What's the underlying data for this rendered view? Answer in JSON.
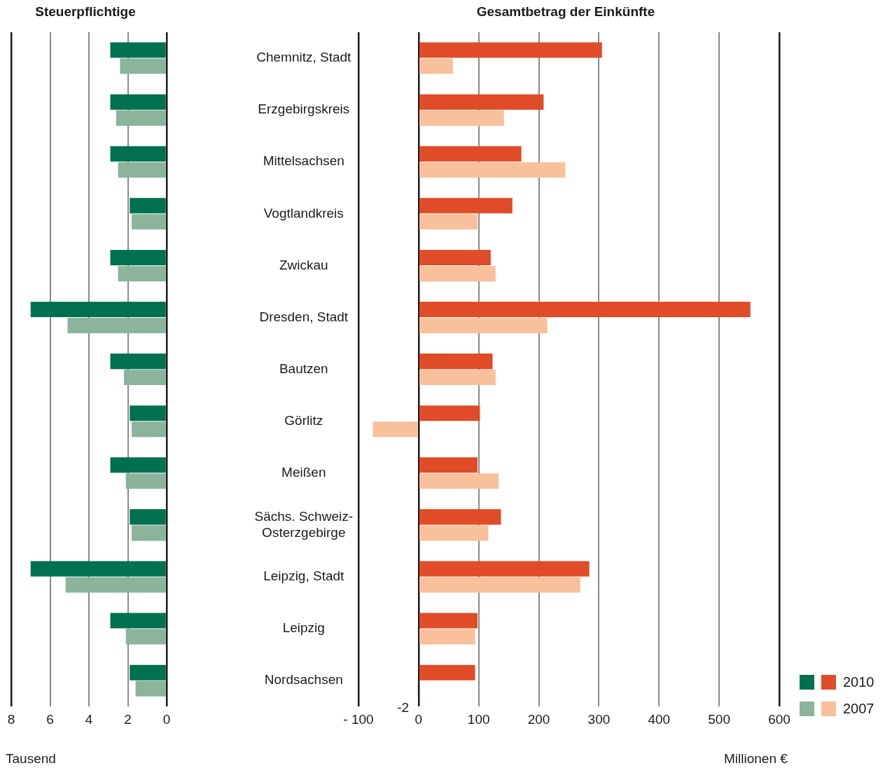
{
  "chart_data": [
    {
      "type": "bar",
      "orientation": "horizontal",
      "title": "Steuerpflichtige",
      "xlabel": "Tausend",
      "categories": [
        null,
        null,
        null,
        null,
        null,
        null,
        null,
        null,
        null,
        null,
        null,
        null,
        null
      ],
      "series": [
        {
          "color": "#00704f",
          "values": [
            2.9,
            2.9,
            2.9,
            1.9,
            2.9,
            7.0,
            2.9,
            1.9,
            2.9,
            1.9,
            7.0,
            2.9,
            1.9
          ]
        },
        {
          "color": "#8cb39b",
          "values": [
            2.4,
            2.6,
            2.5,
            1.8,
            2.5,
            5.1,
            2.2,
            1.8,
            2.1,
            1.8,
            5.2,
            2.1,
            1.6
          ]
        }
      ],
      "xlim": [
        8,
        0
      ],
      "xticks": [
        8,
        6,
        4,
        2,
        0
      ],
      "grid": "x",
      "tick_labels": "x"
    },
    {
      "type": "bar",
      "orientation": "horizontal",
      "title": "Gesamtbetrag der Einkünfte",
      "xlabel": "Millionen €",
      "categories": [
        "Chemnitz, Stadt",
        "Erzgebirgskreis",
        "Mittelsachsen",
        "Vogtlandkreis",
        "Zwickau",
        "Dresden, Stadt",
        "Bautzen",
        "Görlitz",
        "Meißen",
        "Sächs. Schweiz-\nOsterzgebirge",
        "Leipzig, Stadt",
        "Leipzig",
        "Nordsachsen"
      ],
      "series": [
        {
          "name": "2010",
          "color": "#e04b28",
          "values": [
            305,
            208,
            171,
            156,
            120,
            552,
            123,
            102,
            98,
            137,
            284,
            98,
            94
          ]
        },
        {
          "name": "2007",
          "color": "#f8c09b",
          "values": [
            57,
            142,
            244,
            98,
            128,
            214,
            128,
            -76,
            133,
            116,
            269,
            94,
            -2
          ],
          "value_labels": [
            null,
            null,
            null,
            null,
            null,
            null,
            null,
            null,
            null,
            null,
            null,
            null,
            "-2"
          ]
        }
      ],
      "xlim": [
        -100,
        600
      ],
      "xticks": [
        {
          "value": -100,
          "label": "- 100"
        },
        0,
        100,
        200,
        300,
        400,
        500,
        600
      ],
      "grid": "x",
      "legend": "bottom right"
    }
  ]
}
